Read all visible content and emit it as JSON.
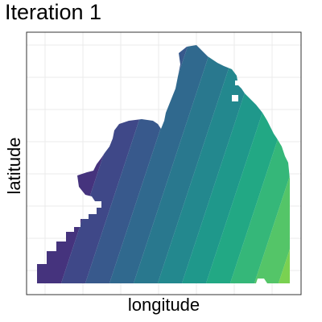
{
  "chart_data": {
    "type": "heatmap",
    "title": "Iteration 1",
    "xlabel": "longitude",
    "ylabel": "latitude",
    "grid": true,
    "legend": "none",
    "x_ticks_labeled": false,
    "y_ticks_labeled": false,
    "colormap": "viridis",
    "band_colors": [
      "#45337D",
      "#3F4888",
      "#38598C",
      "#30698E",
      "#29788E",
      "#23888E",
      "#1F988B",
      "#22A884",
      "#35B779",
      "#54C568",
      "#7AD151"
    ],
    "background": "#ffffff",
    "panel_border": "#333333",
    "gridline_color": "#ebebeb"
  }
}
